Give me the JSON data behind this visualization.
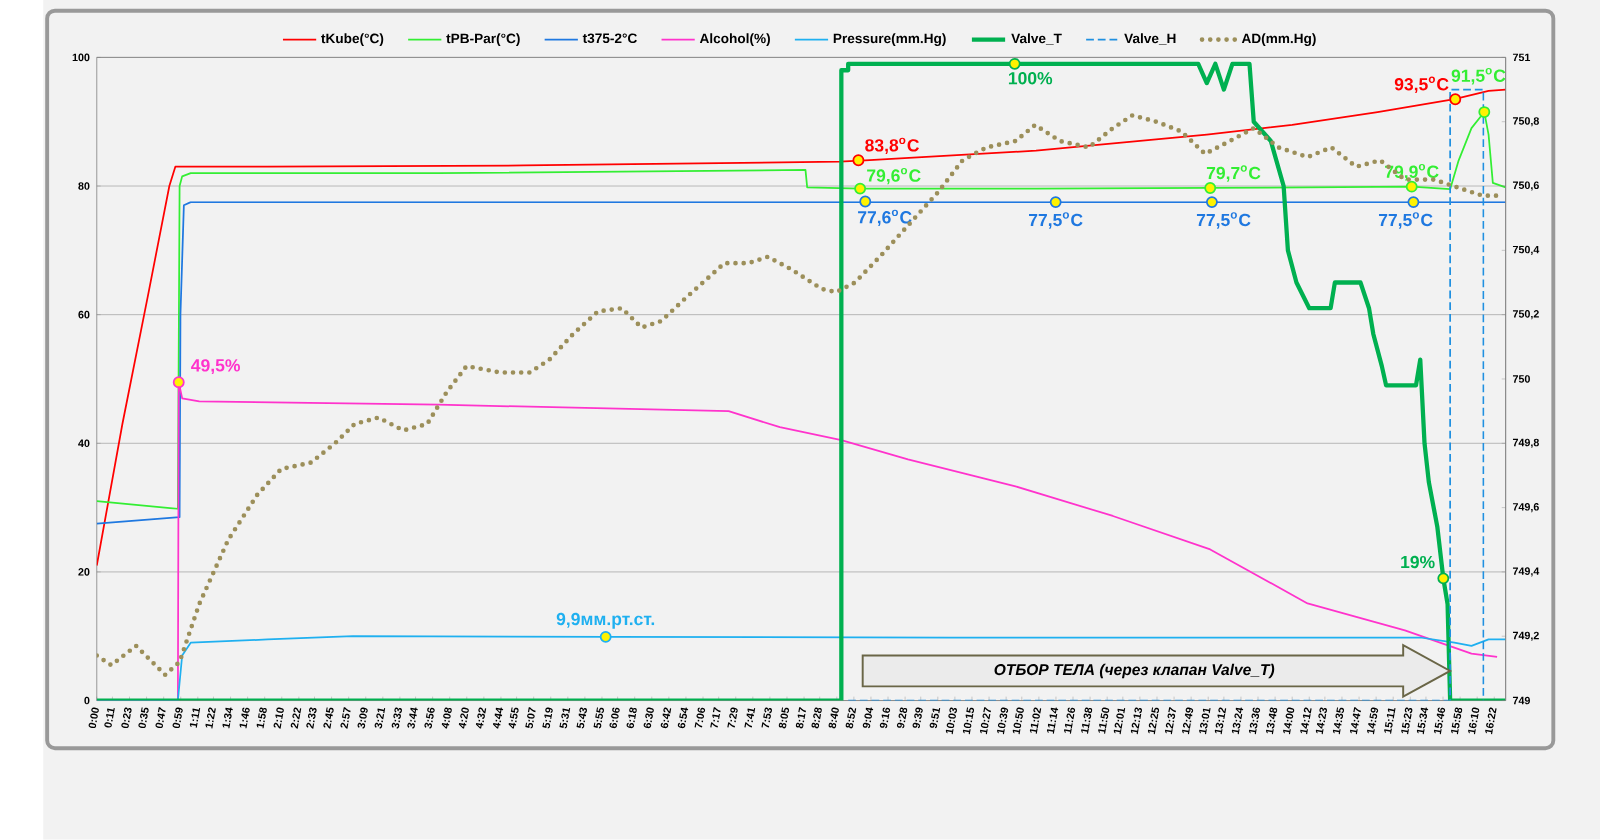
{
  "chart_data": {
    "type": "line",
    "xlim": [
      0,
      16.5
    ],
    "ylim": [
      0,
      100
    ],
    "y2lim": [
      749,
      751
    ],
    "yticks": [
      0,
      20,
      40,
      60,
      80,
      100
    ],
    "y2ticks": [
      749,
      {
        "value": 749.2,
        "label": "749,2"
      },
      {
        "value": 749.4,
        "label": "749,4"
      },
      {
        "value": 749.6,
        "label": "749,6"
      },
      {
        "value": 749.8,
        "label": "749,8"
      },
      750,
      {
        "value": 750.2,
        "label": "750,2"
      },
      {
        "value": 750.4,
        "label": "750,4"
      },
      {
        "value": 750.6,
        "label": "750,6"
      },
      {
        "value": 750.8,
        "label": "750,8"
      },
      751
    ],
    "xticks": [
      {
        "value": 0,
        "label": "0:00"
      },
      {
        "value": 0.1833,
        "label": "0:11"
      },
      {
        "value": 0.3833,
        "label": "0:23"
      },
      {
        "value": 0.5833,
        "label": "0:35"
      },
      {
        "value": 0.7833,
        "label": "0:47"
      },
      {
        "value": 0.9833,
        "label": "0:59"
      },
      {
        "value": 1.1833,
        "label": "1:11"
      },
      {
        "value": 1.3667,
        "label": "1:22"
      },
      {
        "value": 1.5667,
        "label": "1:34"
      },
      {
        "value": 1.7667,
        "label": "1:46"
      },
      {
        "value": 1.9667,
        "label": "1:58"
      },
      {
        "value": 2.1667,
        "label": "2:10"
      },
      {
        "value": 2.3667,
        "label": "2:22"
      },
      {
        "value": 2.55,
        "label": "2:33"
      },
      {
        "value": 2.75,
        "label": "2:45"
      },
      {
        "value": 2.95,
        "label": "2:57"
      },
      {
        "value": 3.15,
        "label": "3:09"
      },
      {
        "value": 3.35,
        "label": "3:21"
      },
      {
        "value": 3.55,
        "label": "3:33"
      },
      {
        "value": 3.7333,
        "label": "3:44"
      },
      {
        "value": 3.9333,
        "label": "3:56"
      },
      {
        "value": 4.1333,
        "label": "4:08"
      },
      {
        "value": 4.3333,
        "label": "4:20"
      },
      {
        "value": 4.5333,
        "label": "4:32"
      },
      {
        "value": 4.7333,
        "label": "4:44"
      },
      {
        "value": 4.9167,
        "label": "4:55"
      },
      {
        "value": 5.1167,
        "label": "5:07"
      },
      {
        "value": 5.3167,
        "label": "5:19"
      },
      {
        "value": 5.5167,
        "label": "5:31"
      },
      {
        "value": 5.7167,
        "label": "5:43"
      },
      {
        "value": 5.9167,
        "label": "5:55"
      },
      {
        "value": 6.1,
        "label": "6:06"
      },
      {
        "value": 6.3,
        "label": "6:18"
      },
      {
        "value": 6.5,
        "label": "6:30"
      },
      {
        "value": 6.7,
        "label": "6:42"
      },
      {
        "value": 6.9,
        "label": "6:54"
      },
      {
        "value": 7.1,
        "label": "7:06"
      },
      {
        "value": 7.2833,
        "label": "7:17"
      },
      {
        "value": 7.4833,
        "label": "7:29"
      },
      {
        "value": 7.6833,
        "label": "7:41"
      },
      {
        "value": 7.8833,
        "label": "7:53"
      },
      {
        "value": 8.0833,
        "label": "8:05"
      },
      {
        "value": 8.2833,
        "label": "8:17"
      },
      {
        "value": 8.4667,
        "label": "8:28"
      },
      {
        "value": 8.6667,
        "label": "8:40"
      },
      {
        "value": 8.8667,
        "label": "8:52"
      },
      {
        "value": 9.0667,
        "label": "9:04"
      },
      {
        "value": 9.2667,
        "label": "9:16"
      },
      {
        "value": 9.4667,
        "label": "9:28"
      },
      {
        "value": 9.65,
        "label": "9:39"
      },
      {
        "value": 9.85,
        "label": "9:51"
      },
      {
        "value": 10.05,
        "label": "10:03"
      },
      {
        "value": 10.25,
        "label": "10:15"
      },
      {
        "value": 10.45,
        "label": "10:27"
      },
      {
        "value": 10.65,
        "label": "10:39"
      },
      {
        "value": 10.8333,
        "label": "10:50"
      },
      {
        "value": 11.0333,
        "label": "11:02"
      },
      {
        "value": 11.2333,
        "label": "11:14"
      },
      {
        "value": 11.4333,
        "label": "11:26"
      },
      {
        "value": 11.6333,
        "label": "11:38"
      },
      {
        "value": 11.8333,
        "label": "11:50"
      },
      {
        "value": 12.0167,
        "label": "12:01"
      },
      {
        "value": 12.2167,
        "label": "12:13"
      },
      {
        "value": 12.4167,
        "label": "12:25"
      },
      {
        "value": 12.6167,
        "label": "12:37"
      },
      {
        "value": 12.8167,
        "label": "12:49"
      },
      {
        "value": 13.0167,
        "label": "13:01"
      },
      {
        "value": 13.2,
        "label": "13:12"
      },
      {
        "value": 13.4,
        "label": "13:24"
      },
      {
        "value": 13.6,
        "label": "13:36"
      },
      {
        "value": 13.8,
        "label": "13:48"
      },
      {
        "value": 14,
        "label": "14:00"
      },
      {
        "value": 14.2,
        "label": "14:12"
      },
      {
        "value": 14.3833,
        "label": "14:23"
      },
      {
        "value": 14.5833,
        "label": "14:35"
      },
      {
        "value": 14.7833,
        "label": "14:47"
      },
      {
        "value": 14.9833,
        "label": "14:59"
      },
      {
        "value": 15.1833,
        "label": "15:11"
      },
      {
        "value": 15.3833,
        "label": "15:23"
      },
      {
        "value": 15.5667,
        "label": "15:34"
      },
      {
        "value": 15.7667,
        "label": "15:46"
      },
      {
        "value": 15.9667,
        "label": "15:58"
      },
      {
        "value": 16.1667,
        "label": "16:10"
      },
      {
        "value": 16.3667,
        "label": "16:22"
      }
    ],
    "grid": "y",
    "legend": "top",
    "series": [
      {
        "name": "tKube(°C)",
        "color": "#ff0000",
        "x": [
          0,
          0.3,
          0.6,
          0.85,
          0.92,
          2,
          5,
          8.7,
          9,
          11,
          13,
          14,
          15,
          15.9,
          16.3,
          16.5
        ],
        "values": [
          21,
          43,
          63,
          80,
          83,
          83,
          83.2,
          83.8,
          84,
          85.5,
          88,
          89.5,
          91.5,
          93.5,
          94.8,
          95
        ]
      },
      {
        "name": "tPB-Par(°C)",
        "color": "#33ee33",
        "x": [
          0,
          0.95,
          0.97,
          1.0,
          1.1,
          4,
          8.3,
          8.32,
          8.94,
          11,
          13.04,
          15.4,
          15.85,
          15.95,
          16.1,
          16.25,
          16.3,
          16.35,
          16.5
        ],
        "values": [
          31,
          29.8,
          80,
          81.5,
          82,
          82,
          82.5,
          79.8,
          79.6,
          79.6,
          79.7,
          79.9,
          79.5,
          84,
          89,
          91.5,
          88,
          80.5,
          79.8
        ]
      },
      {
        "name": "t375-2°C",
        "color": "#1f78e0",
        "x": [
          0,
          0.97,
          0.98,
          1.02,
          1.1,
          16.5
        ],
        "values": [
          27.5,
          28.5,
          60,
          77,
          77.5,
          77.5
        ]
      },
      {
        "name": "Alcohol(%)",
        "color": "#ff33cc",
        "x": [
          0,
          0.95,
          0.96,
          1.0,
          1.2,
          4,
          7.4,
          8,
          8.72,
          9.5,
          10.76,
          11.9,
          13.04,
          14.18,
          15.32,
          16.1,
          16.4
        ],
        "values": [
          0,
          0,
          49.5,
          47,
          46.5,
          46,
          45,
          42.5,
          40.5,
          37.5,
          33.3,
          28.7,
          23.5,
          15.1,
          10.9,
          7.3,
          6.8
        ]
      },
      {
        "name": "Pressure(mm.Hg)",
        "color": "#1fb0f0",
        "x": [
          0,
          0.95,
          1.0,
          1.1,
          2,
          3,
          6,
          10,
          15.5,
          15.9,
          16.1,
          16.3,
          16.5
        ],
        "values": [
          0,
          0,
          7,
          9,
          9.5,
          10,
          9.9,
          9.8,
          9.8,
          9,
          8.5,
          9.5,
          9.5
        ]
      },
      {
        "name": "Valve_T",
        "color": "#00b050",
        "x": [
          0,
          8.72,
          8.72,
          8.8,
          8.8,
          12.9,
          13.0,
          13.1,
          13.2,
          13.3,
          13.5,
          13.55,
          13.75,
          13.9,
          13.95,
          14.05,
          14.2,
          14.45,
          14.5,
          14.8,
          14.9,
          14.95,
          15.05,
          15.1,
          15.45,
          15.5,
          15.55,
          15.6,
          15.7,
          15.77,
          15.82,
          15.85,
          16.5
        ],
        "values": [
          0,
          0,
          98,
          98,
          99,
          99,
          96,
          99,
          95,
          99,
          99,
          90,
          87,
          80,
          70,
          65,
          61,
          61,
          65,
          65,
          61,
          57,
          52,
          49,
          49,
          53,
          40,
          34,
          27,
          19,
          15,
          0,
          0
        ]
      },
      {
        "name": "Valve_H",
        "color": "#2090e0",
        "line_style": "dashed",
        "x": [
          8.8,
          15.85,
          15.85,
          16.24,
          16.24
        ],
        "values": [
          0,
          0,
          95,
          95,
          0
        ]
      },
      {
        "name": "AD(mm.Hg)",
        "color": "#9c8f5a",
        "line_style": "dotted",
        "axis": "y2",
        "x": [
          0,
          0.17,
          0.46,
          0.8,
          0.97,
          1.2,
          1.54,
          1.88,
          2.16,
          2.51,
          2.79,
          3.02,
          3.3,
          3.59,
          3.87,
          4.1,
          4.33,
          4.73,
          5.07,
          5.3,
          5.58,
          5.87,
          6.15,
          6.38,
          6.61,
          6.89,
          7.35,
          7.63,
          7.86,
          8.14,
          8.49,
          8.66,
          8.88,
          9.17,
          9.51,
          9.85,
          10.14,
          10.42,
          10.76,
          10.99,
          11.28,
          11.62,
          11.9,
          12.13,
          12.41,
          12.7,
          12.98,
          13.27,
          13.55,
          13.84,
          14.18,
          14.46,
          14.75,
          15.03,
          15.32,
          15.66,
          16.0,
          16.23,
          16.46
        ],
        "values": [
          749.14,
          749.11,
          749.17,
          749.08,
          749.12,
          749.3,
          749.5,
          749.64,
          749.72,
          749.74,
          749.8,
          749.86,
          749.88,
          749.84,
          749.86,
          749.96,
          750.04,
          750.02,
          750.02,
          750.06,
          750.14,
          750.21,
          750.22,
          750.16,
          750.18,
          750.25,
          750.36,
          750.36,
          750.38,
          750.34,
          750.28,
          750.27,
          750.3,
          750.38,
          750.48,
          750.58,
          750.68,
          750.72,
          750.74,
          750.79,
          750.74,
          750.72,
          750.78,
          750.82,
          750.8,
          750.77,
          750.7,
          750.74,
          750.78,
          750.72,
          750.69,
          750.72,
          750.66,
          750.68,
          750.62,
          750.62,
          750.59,
          750.57,
          750.57
        ]
      }
    ],
    "annotations": [
      {
        "text": "49,5%",
        "x": 0.96,
        "y": 49.5
      },
      {
        "text": "9,9мм.рт.ст.",
        "x": 5.96,
        "y": 9.9
      },
      {
        "text": "83,8$^{o}$C",
        "x": 8.92,
        "y": 84
      },
      {
        "text": "79,6$^{o}$C",
        "x": 8.94,
        "y": 79.6
      },
      {
        "text": "77,6$^{o}$C",
        "x": 9.0,
        "y": 77.6
      },
      {
        "text": "100%",
        "x": 10.75,
        "y": 99
      },
      {
        "text": "77,5$^{o}$C",
        "x": 11.23,
        "y": 77.5
      },
      {
        "text": "79,7$^{o}$C",
        "x": 13.04,
        "y": 79.7
      },
      {
        "text": "77,5$^{o}$C",
        "x": 13.06,
        "y": 77.5
      },
      {
        "text": "79,9$^{o}$C",
        "x": 15.4,
        "y": 79.9
      },
      {
        "text": "77,5$^{o}$C",
        "x": 15.42,
        "y": 77.5
      },
      {
        "text": "93,5$^{o}$C",
        "x": 15.91,
        "y": 93.5
      },
      {
        "text": "91,5$^{o}$C",
        "x": 16.25,
        "y": 91.5
      },
      {
        "text": "19%",
        "x": 15.77,
        "y": 19
      },
      "ОТБОР  ТЕЛА (через клапан Valve_T)"
    ]
  }
}
